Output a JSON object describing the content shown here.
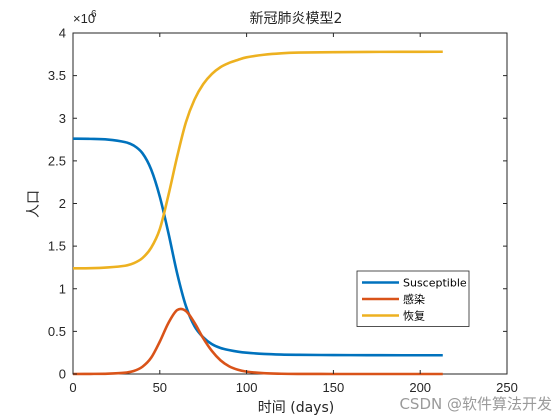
{
  "chart_data": {
    "type": "line",
    "title": "新冠肺炎模型2",
    "xlabel": "时间 (days)",
    "ylabel": "人口",
    "xlim": [
      0,
      250
    ],
    "ylim": [
      0,
      4000000
    ],
    "x_ticks": [
      0,
      50,
      100,
      150,
      200,
      250
    ],
    "y_ticks": [
      0,
      0.5,
      1,
      1.5,
      2,
      2.5,
      3,
      3.5,
      4
    ],
    "y_exponent_label": "×10",
    "y_exponent": "6",
    "grid": false,
    "legend_position": "lower-right",
    "x": [
      0,
      10,
      20,
      30,
      35,
      40,
      45,
      50,
      55,
      60,
      65,
      70,
      75,
      80,
      85,
      90,
      95,
      100,
      110,
      120,
      130,
      150,
      170,
      190,
      213
    ],
    "series": [
      {
        "name": "Susceptible",
        "color": "#0072BD",
        "values": [
          2760000,
          2758000,
          2750000,
          2720000,
          2680000,
          2590000,
          2400000,
          2080000,
          1650000,
          1180000,
          800000,
          560000,
          430000,
          350000,
          305000,
          280000,
          262000,
          250000,
          235000,
          228000,
          225000,
          222000,
          221000,
          220000,
          220000
        ]
      },
      {
        "name": "感染",
        "color": "#D95319",
        "values": [
          0,
          1000,
          4000,
          15000,
          35000,
          85000,
          190000,
          380000,
          600000,
          750000,
          740000,
          600000,
          420000,
          270000,
          160000,
          90000,
          50000,
          28000,
          9000,
          3000,
          1000,
          0,
          0,
          0,
          0
        ]
      },
      {
        "name": "恢复",
        "color": "#EDB120",
        "values": [
          1240000,
          1241000,
          1250000,
          1270000,
          1300000,
          1360000,
          1480000,
          1700000,
          2100000,
          2550000,
          2950000,
          3220000,
          3400000,
          3520000,
          3600000,
          3650000,
          3685000,
          3715000,
          3745000,
          3762000,
          3770000,
          3775000,
          3778000,
          3779000,
          3780000
        ]
      }
    ]
  },
  "watermark": "CSDN @软件算法开发"
}
